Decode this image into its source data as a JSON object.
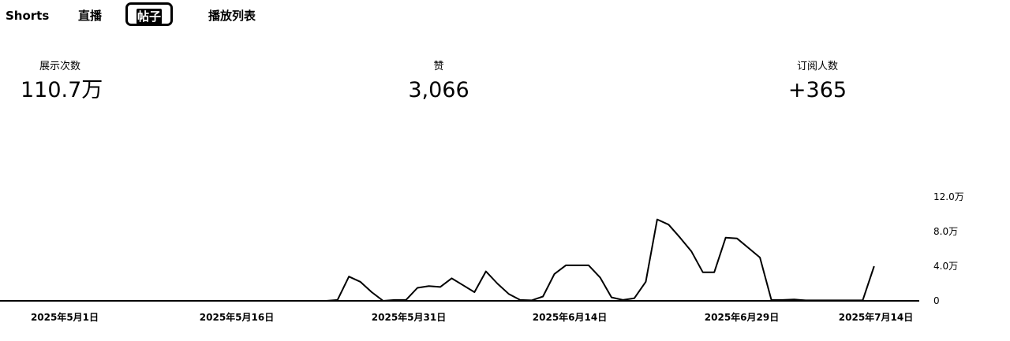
{
  "tabs": {
    "shorts": "Shorts",
    "live": "直播",
    "posts": "帖子",
    "playlists": "播放列表",
    "active": "帖子"
  },
  "metrics": {
    "impressions": {
      "label": "展示次数",
      "value": "110.7万"
    },
    "likes": {
      "label": "赞",
      "value": "3,066"
    },
    "subscribers": {
      "label": "订阅人数",
      "value": "+365"
    }
  },
  "chart_data": {
    "type": "line",
    "title": "",
    "xlabel": "",
    "ylabel": "",
    "y_ticks": [
      "12.0万",
      "8.0万",
      "4.0万",
      "0"
    ],
    "ylim": [
      0,
      120000
    ],
    "x_ticks": [
      "2025年5月1日",
      "2025年5月16日",
      "2025年5月31日",
      "2025年6月14日",
      "2025年6月29日",
      "2025年7月14日"
    ],
    "series": [
      {
        "line_color": "#000000",
        "x": [
          "2025-05-01",
          "2025-05-02",
          "2025-05-03",
          "2025-05-04",
          "2025-05-05",
          "2025-05-06",
          "2025-05-07",
          "2025-05-08",
          "2025-05-09",
          "2025-05-10",
          "2025-05-11",
          "2025-05-12",
          "2025-05-13",
          "2025-05-14",
          "2025-05-15",
          "2025-05-16",
          "2025-05-17",
          "2025-05-18",
          "2025-05-19",
          "2025-05-20",
          "2025-05-21",
          "2025-05-22",
          "2025-05-23",
          "2025-05-24",
          "2025-05-25",
          "2025-05-26",
          "2025-05-27",
          "2025-05-28",
          "2025-05-29",
          "2025-05-30",
          "2025-05-31",
          "2025-06-01",
          "2025-06-02",
          "2025-06-03",
          "2025-06-04",
          "2025-06-05",
          "2025-06-06",
          "2025-06-07",
          "2025-06-08",
          "2025-06-09",
          "2025-06-10",
          "2025-06-11",
          "2025-06-12",
          "2025-06-13",
          "2025-06-14",
          "2025-06-15",
          "2025-06-16",
          "2025-06-17",
          "2025-06-18",
          "2025-06-19",
          "2025-06-20",
          "2025-06-21",
          "2025-06-22",
          "2025-06-23",
          "2025-06-24",
          "2025-06-25",
          "2025-06-26",
          "2025-06-27",
          "2025-06-28",
          "2025-06-29",
          "2025-06-30",
          "2025-07-01",
          "2025-07-02",
          "2025-07-03",
          "2025-07-04",
          "2025-07-05",
          "2025-07-06",
          "2025-07-07",
          "2025-07-08",
          "2025-07-09",
          "2025-07-10",
          "2025-07-11",
          "2025-07-12",
          "2025-07-13",
          "2025-07-14",
          "2025-07-15"
        ],
        "values": [
          0,
          0,
          0,
          0,
          0,
          0,
          0,
          0,
          0,
          0,
          0,
          0,
          0,
          0,
          0,
          0,
          0,
          0,
          0,
          0,
          0,
          0,
          0,
          0,
          0,
          0,
          0,
          1000,
          28000,
          22000,
          10000,
          0,
          1000,
          1000,
          15000,
          17000,
          16000,
          26000,
          18000,
          10000,
          34000,
          20000,
          8000,
          1000,
          500,
          5000,
          31000,
          41000,
          41000,
          41000,
          27000,
          4000,
          1000,
          3000,
          22000,
          94000,
          88000,
          73000,
          57000,
          33000,
          33000,
          73000,
          72000,
          61000,
          50000,
          1000,
          1000,
          1500,
          500,
          500,
          500,
          500,
          500,
          500,
          40000,
          null
        ]
      }
    ],
    "grid": false,
    "legend": "none"
  }
}
